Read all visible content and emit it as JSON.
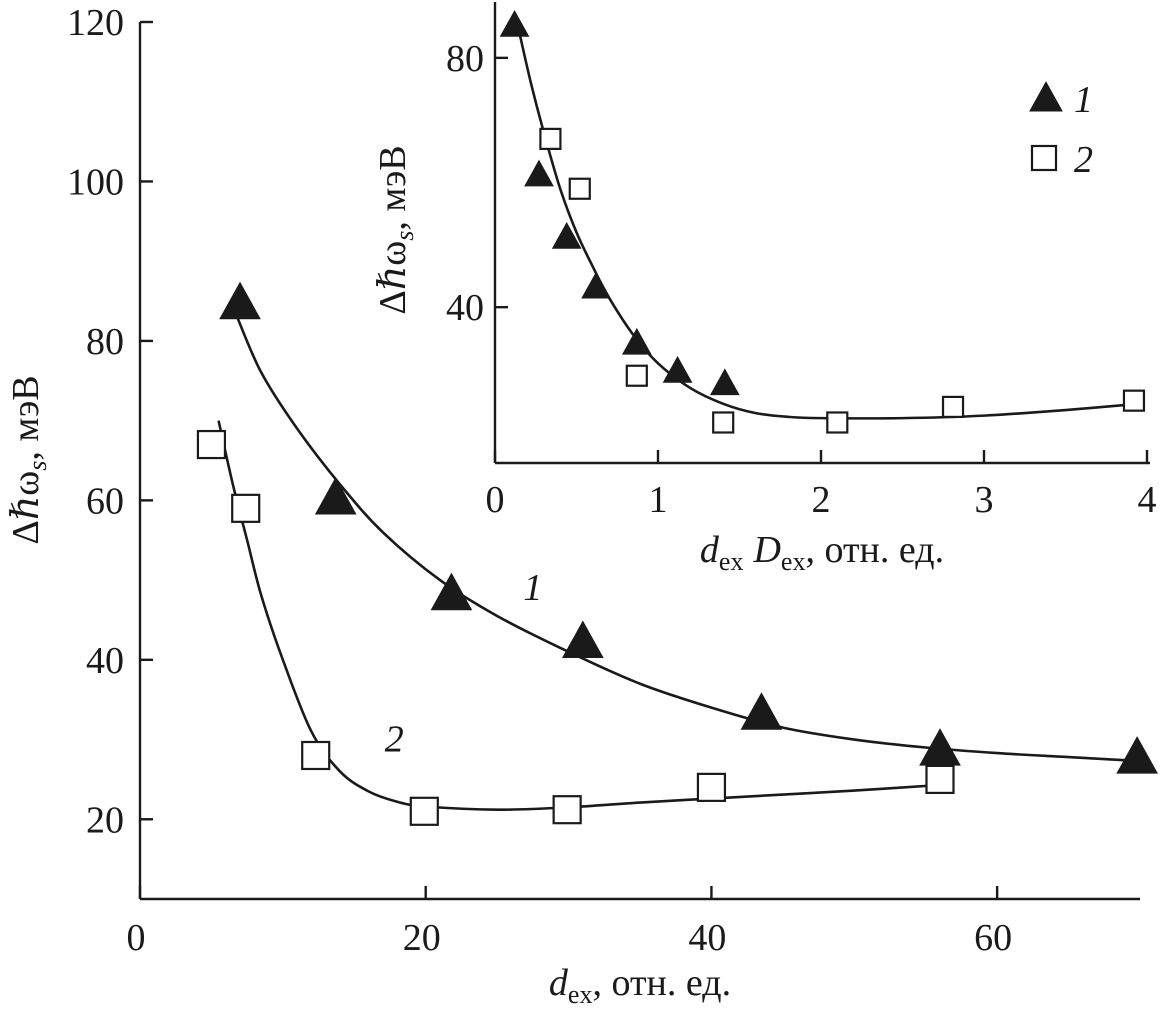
{
  "colors": {
    "ink": "#1a1a1a",
    "background": "#ffffff"
  },
  "chart_data": [
    {
      "type": "scatter",
      "title": "",
      "xlabel_var": "d",
      "xlabel_sub": "ex",
      "xlabel_rest": ", отн. ед.",
      "ylabel_main": "Δℏω",
      "ylabel_sub": "s",
      "ylabel_rest": ", мэВ",
      "xlim": [
        0,
        70
      ],
      "ylim": [
        10,
        120
      ],
      "xticks": [
        "0",
        "20",
        "40",
        "60"
      ],
      "yticks": [
        "20",
        "40",
        "60",
        "80",
        "100",
        "120"
      ],
      "grid": false,
      "series": [
        {
          "name": "1",
          "marker": "filled-triangle",
          "points": [
            [
              7.0,
              84.5
            ],
            [
              13.7,
              60.0
            ],
            [
              21.8,
              48.0
            ],
            [
              31.0,
              42.0
            ],
            [
              43.5,
              33.0
            ],
            [
              56.0,
              28.5
            ],
            [
              69.8,
              27.5
            ]
          ],
          "fit": [
            [
              6.8,
              83
            ],
            [
              8.5,
              76
            ],
            [
              11,
              69
            ],
            [
              14,
              62
            ],
            [
              17,
              56
            ],
            [
              21,
              50
            ],
            [
              25,
              45.5
            ],
            [
              30,
              41
            ],
            [
              35,
              37
            ],
            [
              40,
              34
            ],
            [
              45,
              31.5
            ],
            [
              50,
              30
            ],
            [
              55,
              29
            ],
            [
              60,
              28.3
            ],
            [
              65,
              27.8
            ],
            [
              70,
              27.3
            ]
          ]
        },
        {
          "name": "2",
          "marker": "open-square",
          "points": [
            [
              5.0,
              67.0
            ],
            [
              7.4,
              59.0
            ],
            [
              12.3,
              28.0
            ],
            [
              19.9,
              21.0
            ],
            [
              29.9,
              21.2
            ],
            [
              40.0,
              24.0
            ],
            [
              56.0,
              25.0
            ]
          ],
          "fit": [
            [
              5.5,
              70
            ],
            [
              6.5,
              62
            ],
            [
              7.5,
              55
            ],
            [
              8.5,
              48
            ],
            [
              10,
              40
            ],
            [
              12,
              31
            ],
            [
              14,
              26
            ],
            [
              16,
              23.5
            ],
            [
              18,
              22.2
            ],
            [
              20,
              21.6
            ],
            [
              25,
              21.2
            ],
            [
              30,
              21.5
            ],
            [
              35,
              22.1
            ],
            [
              40,
              22.6
            ],
            [
              45,
              23.1
            ],
            [
              50,
              23.6
            ],
            [
              56,
              24.3
            ]
          ]
        }
      ],
      "annotations": [
        {
          "text": "1",
          "x": 27.5,
          "y": 47.5
        },
        {
          "text": "2",
          "x": 17.8,
          "y": 28.5
        }
      ]
    },
    {
      "type": "scatter",
      "title": "",
      "xlabel_var1": "d",
      "xlabel_sub1": "ex",
      "xlabel_var2": "D",
      "xlabel_sub2": "ex",
      "xlabel_rest": ", отн. ед.",
      "ylabel_main": "Δℏω",
      "ylabel_sub": "s",
      "ylabel_rest": ", мэВ",
      "xlim": [
        0,
        4
      ],
      "ylim": [
        15,
        88
      ],
      "xticks": [
        "0",
        "1",
        "2",
        "3",
        "4"
      ],
      "yticks": [
        "40",
        "80"
      ],
      "grid": false,
      "legend_position": "top-right",
      "legend": [
        {
          "label": "1",
          "marker": "filled-triangle"
        },
        {
          "label": "2",
          "marker": "open-square"
        }
      ],
      "series": [
        {
          "name": "1",
          "marker": "filled-triangle",
          "points": [
            [
              0.12,
              85.0
            ],
            [
              0.27,
              61.0
            ],
            [
              0.44,
              51.0
            ],
            [
              0.62,
              43.0
            ],
            [
              0.87,
              34.0
            ],
            [
              1.12,
              29.5
            ],
            [
              1.41,
              27.5
            ]
          ]
        },
        {
          "name": "2",
          "marker": "open-square",
          "points": [
            [
              0.34,
              67.0
            ],
            [
              0.52,
              59.0
            ],
            [
              0.87,
              29.0
            ],
            [
              1.4,
              21.5
            ],
            [
              2.1,
              21.5
            ],
            [
              2.81,
              24.0
            ],
            [
              3.92,
              25.0
            ]
          ]
        }
      ],
      "fit": [
        [
          0.15,
          84
        ],
        [
          0.22,
          76
        ],
        [
          0.3,
          68
        ],
        [
          0.4,
          59
        ],
        [
          0.5,
          52
        ],
        [
          0.6,
          46.5
        ],
        [
          0.7,
          41.5
        ],
        [
          0.85,
          35.5
        ],
        [
          1.0,
          31
        ],
        [
          1.2,
          27
        ],
        [
          1.4,
          24.5
        ],
        [
          1.6,
          23
        ],
        [
          1.8,
          22.4
        ],
        [
          2.0,
          22.2
        ],
        [
          2.5,
          22.2
        ],
        [
          3.0,
          22.6
        ],
        [
          3.5,
          23.5
        ],
        [
          3.95,
          24.5
        ]
      ]
    }
  ]
}
